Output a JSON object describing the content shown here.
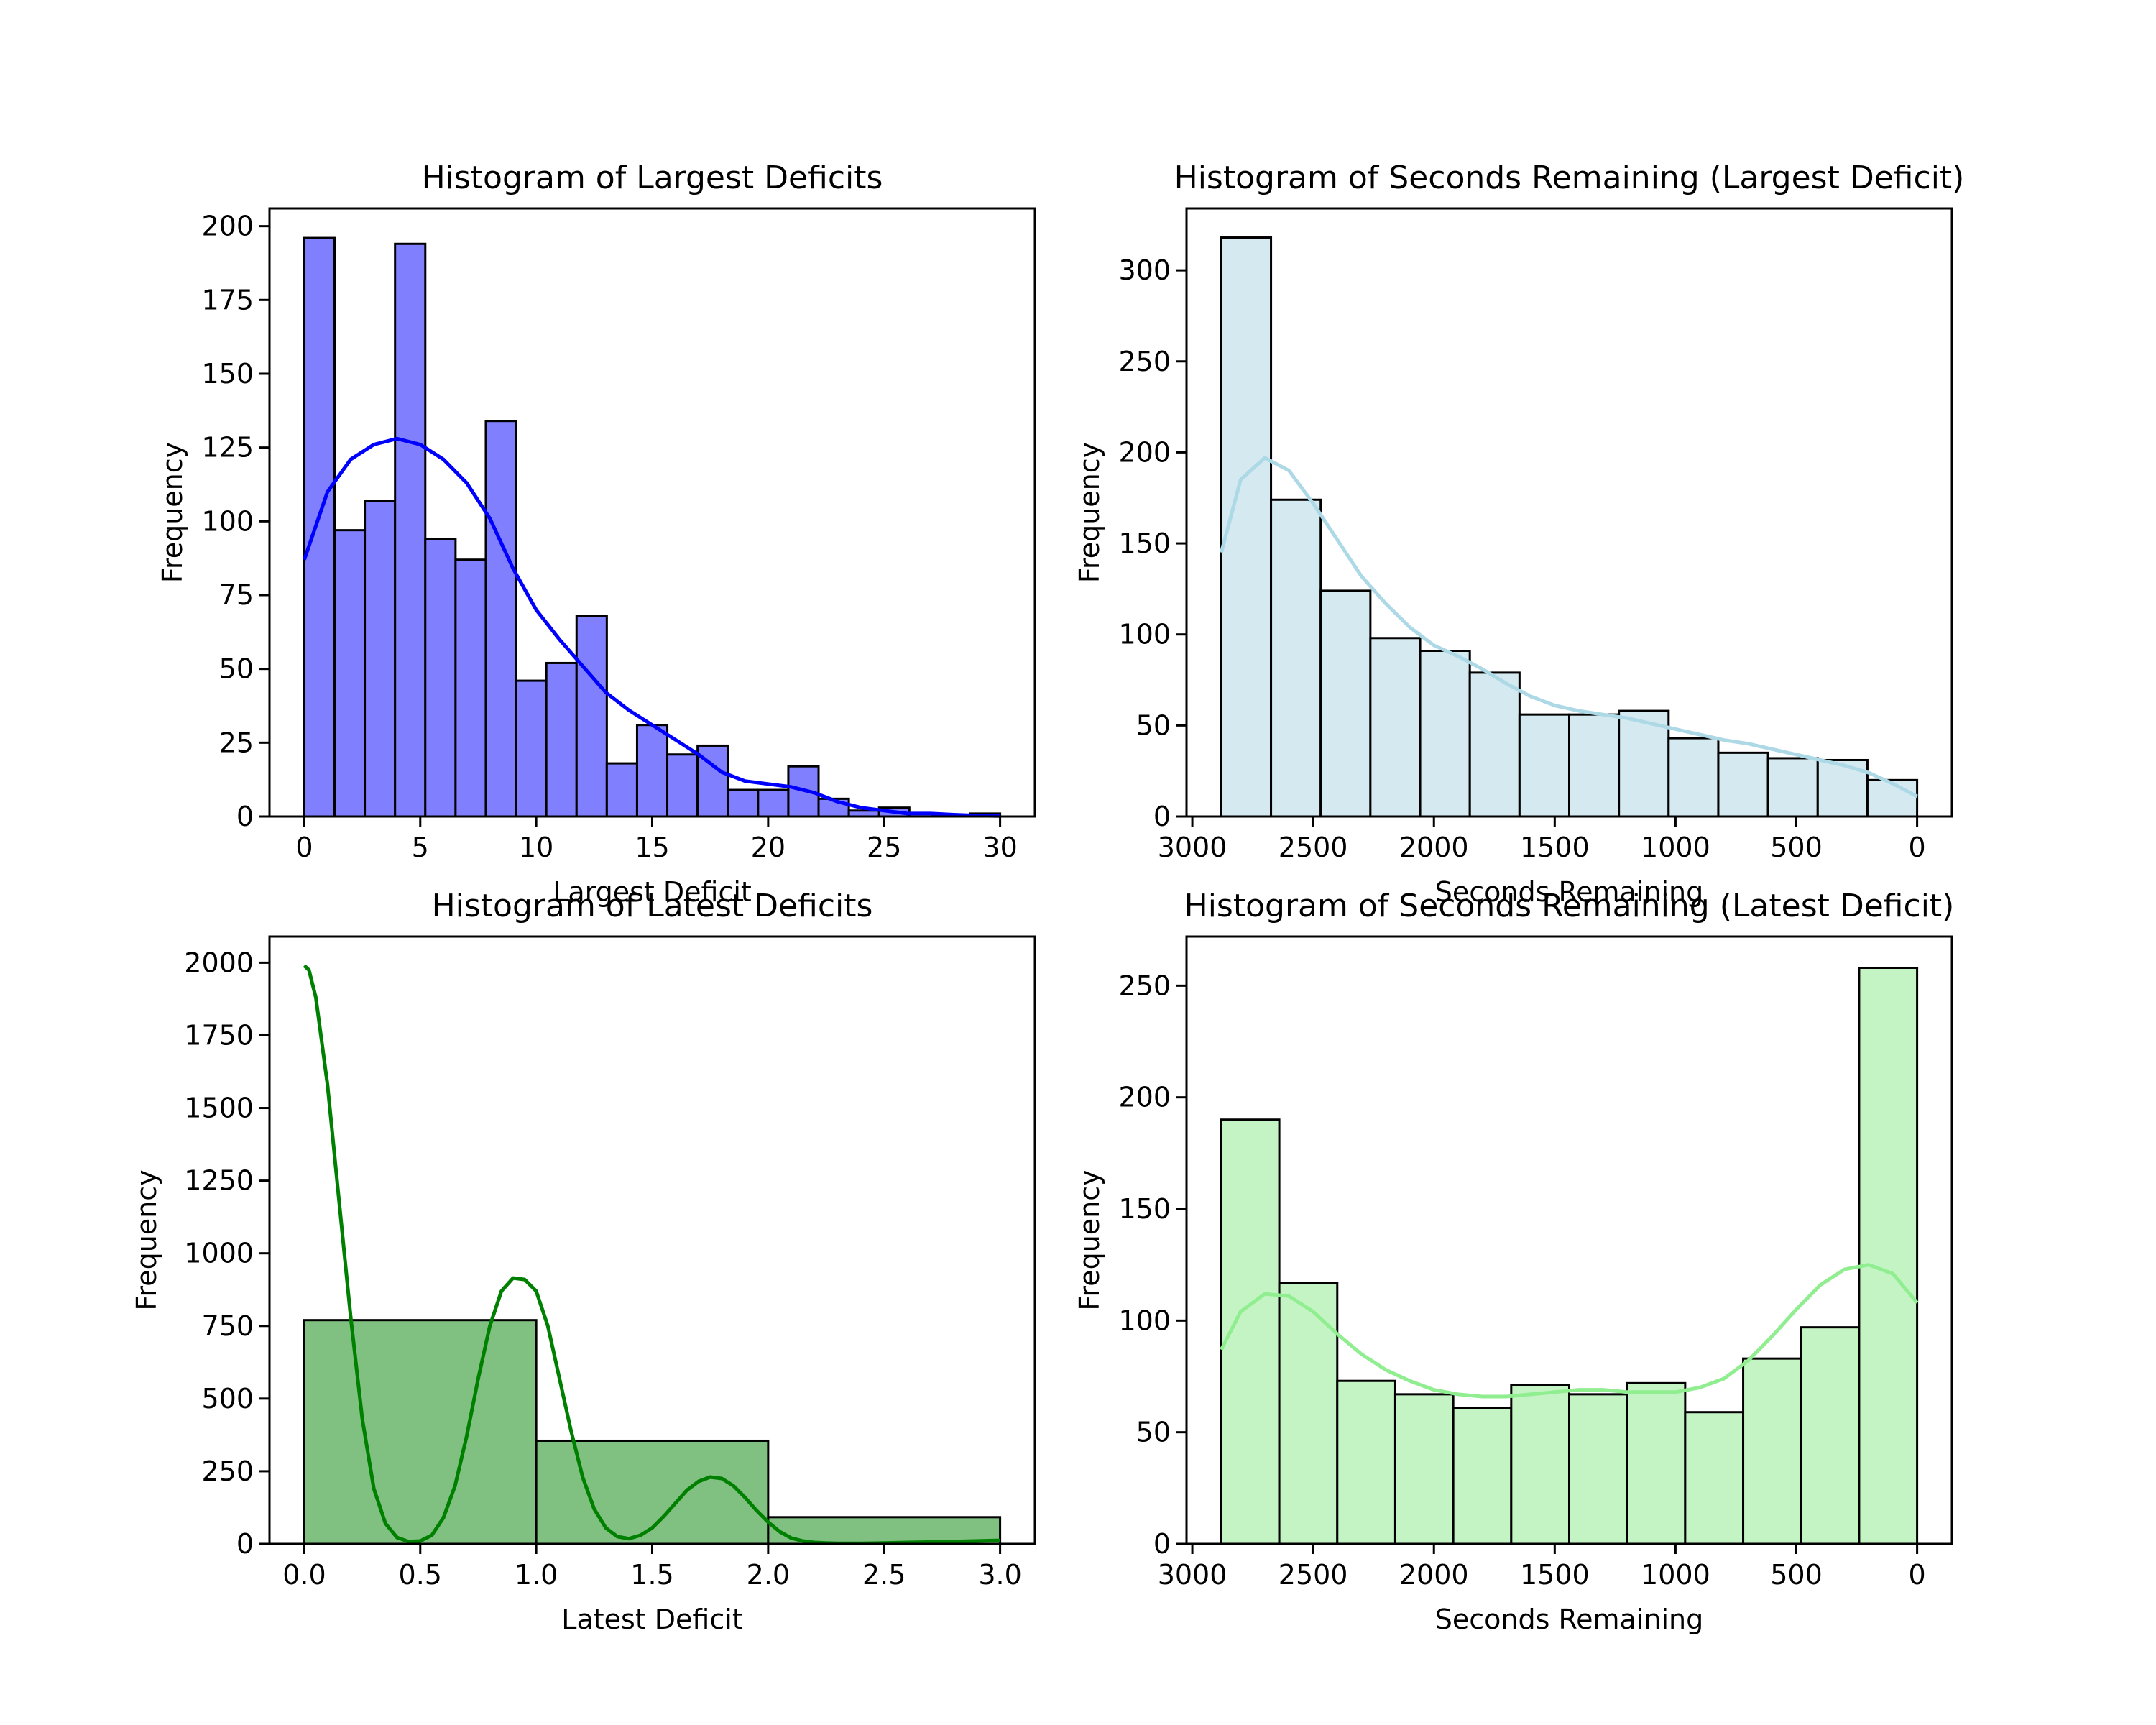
{
  "chart_data": [
    {
      "type": "bar",
      "title": "Histogram of Largest Deficits",
      "xlabel": "Largest Deficit",
      "ylabel": "Frequency",
      "xlim": [
        -1.5,
        31.5
      ],
      "ylim": [
        0,
        206
      ],
      "xticks": [
        0,
        5,
        10,
        15,
        20,
        25,
        30
      ],
      "xtick_labels": [
        "0",
        "5",
        "10",
        "15",
        "20",
        "25",
        "30"
      ],
      "yticks": [
        0,
        25,
        50,
        75,
        100,
        125,
        150,
        175,
        200
      ],
      "ytick_labels": [
        "0",
        "25",
        "50",
        "75",
        "100",
        "125",
        "150",
        "175",
        "200"
      ],
      "bin_edges": [
        0,
        1.3043,
        2.6087,
        3.913,
        5.2174,
        6.5217,
        7.8261,
        9.1304,
        10.4348,
        11.7391,
        13.0435,
        14.3478,
        15.6522,
        16.9565,
        18.2609,
        19.5652,
        20.8696,
        22.1739,
        23.4783,
        24.7826,
        26.087,
        27.3913,
        28.6957,
        30
      ],
      "values": [
        196,
        97,
        107,
        194,
        94,
        87,
        134,
        46,
        52,
        68,
        18,
        31,
        21,
        24,
        9,
        9,
        17,
        6,
        2,
        3,
        0,
        0,
        1
      ],
      "kde": {
        "x": [
          0,
          1,
          2,
          3,
          4,
          5,
          6,
          7,
          8,
          9,
          10,
          11,
          12,
          13,
          14,
          15,
          16,
          17,
          18,
          19,
          20,
          21,
          22,
          23,
          24,
          25,
          26,
          27,
          28,
          29,
          30
        ],
        "y": [
          87,
          110,
          121,
          126,
          128,
          126,
          121,
          113,
          101,
          84,
          70,
          60,
          51,
          42,
          36,
          31,
          26,
          21,
          15,
          12,
          11,
          10,
          8,
          5,
          3,
          2,
          1,
          1,
          0.6,
          0.3,
          0.2
        ]
      },
      "bar_color": "#8080ff",
      "line_color": "#0000ff"
    },
    {
      "type": "bar",
      "title": "Histogram of Seconds Remaining (Largest Deficit)",
      "xlabel": "Seconds Remaining",
      "ylabel": "Frequency",
      "x_inverted": true,
      "xlim": [
        3024,
        -144
      ],
      "ylim": [
        0,
        334
      ],
      "xticks": [
        3000,
        2500,
        2000,
        1500,
        1000,
        500,
        0
      ],
      "xtick_labels": [
        "3000",
        "2500",
        "2000",
        "1500",
        "1000",
        "500",
        "0"
      ],
      "yticks": [
        0,
        50,
        100,
        150,
        200,
        250,
        300
      ],
      "ytick_labels": [
        "0",
        "50",
        "100",
        "150",
        "200",
        "250",
        "300"
      ],
      "bin_edges": [
        2880,
        2674.3,
        2468.6,
        2262.9,
        2057.1,
        1851.4,
        1645.7,
        1440,
        1234.3,
        1028.6,
        822.9,
        617.1,
        411.4,
        205.7,
        0
      ],
      "values": [
        318,
        174,
        124,
        98,
        91,
        79,
        56,
        56,
        58,
        43,
        35,
        32,
        31,
        20
      ],
      "kde": {
        "x": [
          2880,
          2800,
          2700,
          2600,
          2500,
          2400,
          2300,
          2200,
          2100,
          2000,
          1900,
          1800,
          1700,
          1600,
          1500,
          1400,
          1300,
          1200,
          1100,
          1000,
          900,
          800,
          700,
          600,
          500,
          400,
          300,
          200,
          100,
          0
        ],
        "y": [
          145,
          185,
          197,
          190,
          172,
          152,
          132,
          117,
          104,
          94,
          88,
          81,
          73,
          66,
          61,
          58,
          56,
          54,
          51,
          48,
          45,
          42,
          40,
          37,
          34,
          31,
          28,
          24,
          18,
          11
        ]
      },
      "bar_color": "#d4e9f0",
      "line_color": "#add8e6"
    },
    {
      "type": "bar",
      "title": "Histogram of Latest Deficits",
      "xlabel": "Latest Deficit",
      "ylabel": "Frequency",
      "xlim": [
        -0.15,
        3.15
      ],
      "ylim": [
        0,
        2090
      ],
      "xticks": [
        0,
        0.5,
        1,
        1.5,
        2,
        2.5,
        3
      ],
      "xtick_labels": [
        "0.0",
        "0.5",
        "1.0",
        "1.5",
        "2.0",
        "2.5",
        "3.0"
      ],
      "yticks": [
        0,
        250,
        500,
        750,
        1000,
        1250,
        1500,
        1750,
        2000
      ],
      "ytick_labels": [
        "0",
        "250",
        "500",
        "750",
        "1000",
        "1250",
        "1500",
        "1750",
        "2000"
      ],
      "bin_edges": [
        0,
        1,
        2,
        3
      ],
      "values": [
        770,
        355,
        92
      ],
      "kde": {
        "x": [
          0,
          0.02,
          0.05,
          0.1,
          0.15,
          0.2,
          0.25,
          0.3,
          0.35,
          0.4,
          0.45,
          0.5,
          0.55,
          0.6,
          0.65,
          0.7,
          0.75,
          0.8,
          0.85,
          0.9,
          0.95,
          1.0,
          1.05,
          1.1,
          1.15,
          1.2,
          1.25,
          1.3,
          1.35,
          1.4,
          1.45,
          1.5,
          1.55,
          1.6,
          1.65,
          1.7,
          1.75,
          1.8,
          1.85,
          1.9,
          1.95,
          2.0,
          2.05,
          2.1,
          2.15,
          2.2,
          2.25,
          2.3,
          2.35,
          2.4,
          2.5,
          2.6,
          2.8,
          3.0
        ],
        "y": [
          1990,
          1975,
          1880,
          1580,
          1180,
          780,
          430,
          190,
          70,
          22,
          8,
          10,
          30,
          90,
          200,
          370,
          570,
          750,
          870,
          915,
          910,
          870,
          750,
          570,
          390,
          230,
          120,
          55,
          25,
          18,
          30,
          55,
          95,
          140,
          185,
          215,
          230,
          225,
          200,
          160,
          115,
          75,
          42,
          20,
          10,
          5,
          3,
          2,
          2,
          2,
          3,
          5,
          8,
          12
        ],
        "note_peak_y": 230
      },
      "bar_color": "#80c080",
      "line_color": "#008000"
    },
    {
      "type": "bar",
      "title": "Histogram of Seconds Remaining (Latest Deficit)",
      "xlabel": "Seconds Remaining",
      "ylabel": "Frequency",
      "x_inverted": true,
      "xlim": [
        3024,
        -144
      ],
      "ylim": [
        0,
        272
      ],
      "xticks": [
        3000,
        2500,
        2000,
        1500,
        1000,
        500,
        0
      ],
      "xtick_labels": [
        "3000",
        "2500",
        "2000",
        "1500",
        "1000",
        "500",
        "0"
      ],
      "yticks": [
        0,
        50,
        100,
        150,
        200,
        250
      ],
      "ytick_labels": [
        "0",
        "50",
        "100",
        "150",
        "200",
        "250"
      ],
      "bin_edges": [
        2880,
        2640,
        2400,
        2160,
        1920,
        1680,
        1440,
        1200,
        960,
        720,
        480,
        240,
        0
      ],
      "values": [
        190,
        117,
        73,
        67,
        61,
        71,
        67,
        72,
        59,
        83,
        97,
        258
      ],
      "kde": {
        "x": [
          2880,
          2800,
          2700,
          2600,
          2500,
          2400,
          2300,
          2200,
          2100,
          2000,
          1900,
          1800,
          1700,
          1600,
          1500,
          1400,
          1300,
          1200,
          1100,
          1000,
          900,
          800,
          700,
          600,
          500,
          400,
          300,
          200,
          100,
          0
        ],
        "y": [
          87,
          104,
          112,
          111,
          104,
          94,
          85,
          78,
          73,
          69,
          67,
          66,
          66,
          67,
          68,
          69,
          69,
          68,
          68,
          68,
          70,
          74,
          82,
          93,
          105,
          116,
          123,
          125,
          121,
          108
        ]
      },
      "bar_color": "#c4f4c4",
      "line_color": "#90ee90"
    }
  ]
}
